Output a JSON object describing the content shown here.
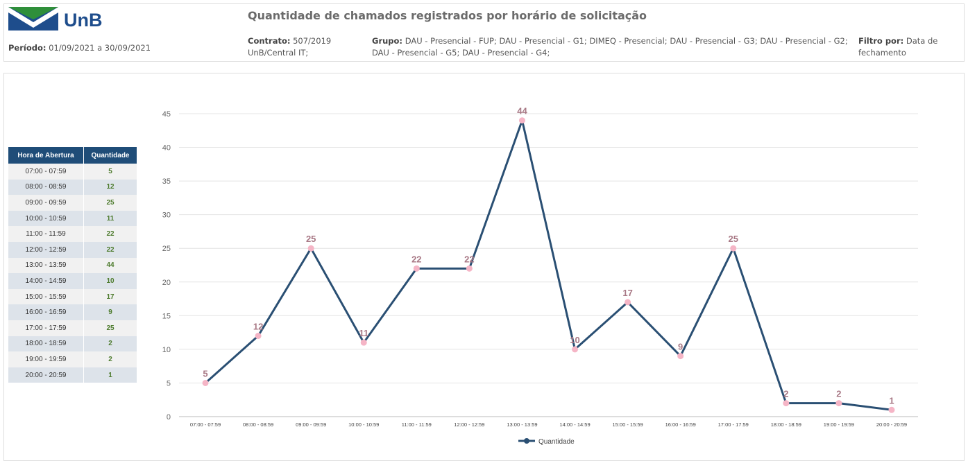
{
  "header": {
    "logo": "UnB",
    "title": "Quantidade de chamados registrados por horário de solicitação",
    "period_label": "Período:",
    "period_value": "01/09/2021 a 30/09/2021",
    "contract_label": "Contrato:",
    "contract_value": "507/2019",
    "contract_line2": "UnB/Central IT;",
    "group_label": "Grupo:",
    "group_value": "DAU - Presencial - FUP; DAU - Presencial - G1; DIMEQ - Presencial; DAU - Presencial - G3; DAU - Presencial - G2; DAU - Presencial - G5; DAU - Presencial - G4;",
    "filter_label": "Filtro por:",
    "filter_value": "Data de fechamento"
  },
  "table": {
    "headers": [
      "Hora de Abertura",
      "Quantidade"
    ],
    "rows": [
      [
        "07:00 - 07:59",
        "5"
      ],
      [
        "08:00 - 08:59",
        "12"
      ],
      [
        "09:00 - 09:59",
        "25"
      ],
      [
        "10:00 - 10:59",
        "11"
      ],
      [
        "11:00 - 11:59",
        "22"
      ],
      [
        "12:00 - 12:59",
        "22"
      ],
      [
        "13:00 - 13:59",
        "44"
      ],
      [
        "14:00 - 14:59",
        "10"
      ],
      [
        "15:00 - 15:59",
        "17"
      ],
      [
        "16:00 - 16:59",
        "9"
      ],
      [
        "17:00 - 17:59",
        "25"
      ],
      [
        "18:00 - 18:59",
        "2"
      ],
      [
        "19:00 - 19:59",
        "2"
      ],
      [
        "20:00 - 20:59",
        "1"
      ]
    ]
  },
  "chart_data": {
    "type": "line",
    "categories": [
      "07:00 - 07:59",
      "08:00 - 08:59",
      "09:00 - 09:59",
      "10:00 - 10:59",
      "11:00 - 11:59",
      "12:00 - 12:59",
      "13:00 - 13:59",
      "14:00 - 14:59",
      "15:00 - 15:59",
      "16:00 - 16:59",
      "17:00 - 17:59",
      "18:00 - 18:59",
      "19:00 - 19:59",
      "20:00 - 20:59"
    ],
    "series": [
      {
        "name": "Quantidade",
        "color": "#2a4f73",
        "marker_color": "#f5b5c6",
        "label_color": "#a87885",
        "values": [
          5,
          12,
          25,
          11,
          22,
          22,
          44,
          10,
          17,
          9,
          25,
          2,
          2,
          1
        ]
      }
    ],
    "ylim": [
      0,
      45
    ],
    "yticks": [
      0,
      5,
      10,
      15,
      20,
      25,
      30,
      35,
      40,
      45
    ],
    "grid": true,
    "legend": "bottom"
  }
}
